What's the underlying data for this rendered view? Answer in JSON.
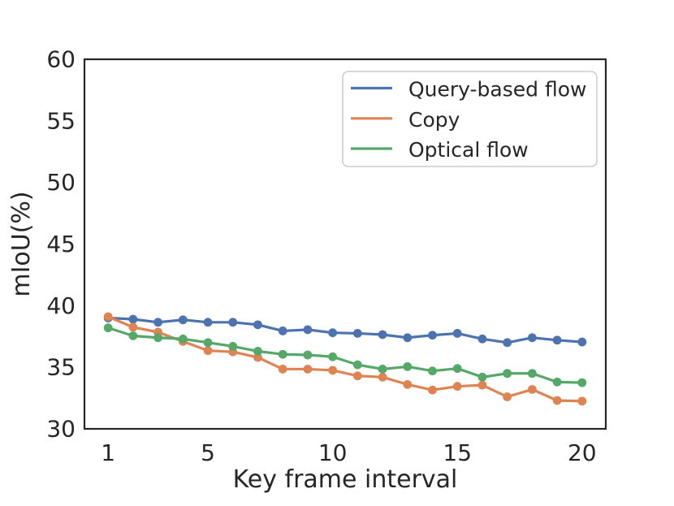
{
  "figure": {
    "background": "#ffffff",
    "text_color": "#262626",
    "spine_color": "#262626",
    "legend_border_color": "#cccccc"
  },
  "chart_data": {
    "type": "line",
    "title": "",
    "xlabel": "Key frame interval",
    "ylabel": "mIoU(%)",
    "xlim": [
      0.05,
      20.95
    ],
    "ylim": [
      30,
      60
    ],
    "x_ticks": [
      1,
      5,
      10,
      15,
      20
    ],
    "y_ticks": [
      30,
      35,
      40,
      45,
      50,
      55,
      60
    ],
    "grid": false,
    "legend_position": "upper right",
    "marker": "circle",
    "x": [
      1,
      2,
      3,
      4,
      5,
      6,
      7,
      8,
      9,
      10,
      11,
      12,
      13,
      14,
      15,
      16,
      17,
      18,
      19,
      20
    ],
    "series": [
      {
        "name": "Query-based flow",
        "color": "#4C72B0",
        "values": [
          39.0,
          38.9,
          38.65,
          38.85,
          38.65,
          38.65,
          38.45,
          37.95,
          38.05,
          37.8,
          37.75,
          37.65,
          37.4,
          37.6,
          37.75,
          37.3,
          37.0,
          37.4,
          37.2,
          37.05
        ]
      },
      {
        "name": "Copy",
        "color": "#DD8452",
        "values": [
          39.1,
          38.25,
          37.85,
          37.1,
          36.35,
          36.25,
          35.8,
          34.85,
          34.85,
          34.75,
          34.3,
          34.2,
          33.6,
          33.15,
          33.45,
          33.55,
          32.6,
          33.2,
          32.3,
          32.25
        ]
      },
      {
        "name": "Optical flow",
        "color": "#55A868",
        "values": [
          38.2,
          37.55,
          37.4,
          37.3,
          37.0,
          36.7,
          36.3,
          36.05,
          36.0,
          35.85,
          35.2,
          34.85,
          35.05,
          34.7,
          34.9,
          34.2,
          34.5,
          34.5,
          33.8,
          33.75
        ]
      }
    ]
  }
}
